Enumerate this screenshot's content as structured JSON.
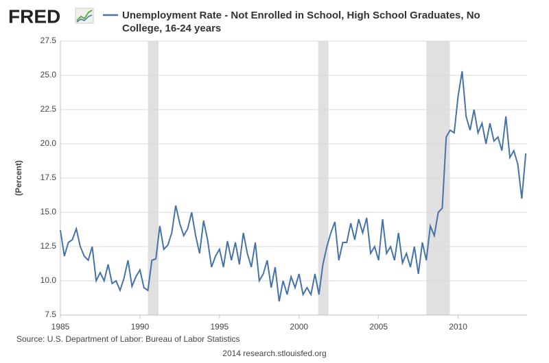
{
  "logo": "FRED",
  "chart_data": {
    "type": "line",
    "title": "Unemployment Rate - Not Enrolled in School, High School Graduates, No College, 16-24 years",
    "y_label": "(Percent)",
    "source": "Source: U.S. Department of Labor: Bureau of Labor Statistics",
    "footer": "2014 research.stlouisfed.org",
    "x": [
      1985,
      1985.25,
      1985.5,
      1985.75,
      1986,
      1986.25,
      1986.5,
      1986.75,
      1987,
      1987.25,
      1987.5,
      1987.75,
      1988,
      1988.25,
      1988.5,
      1988.75,
      1989,
      1989.25,
      1989.5,
      1989.75,
      1990,
      1990.25,
      1990.5,
      1990.75,
      1991,
      1991.25,
      1991.5,
      1991.75,
      1992,
      1992.25,
      1992.5,
      1992.75,
      1993,
      1993.25,
      1993.5,
      1993.75,
      1994,
      1994.25,
      1994.5,
      1994.75,
      1995,
      1995.25,
      1995.5,
      1995.75,
      1996,
      1996.25,
      1996.5,
      1996.75,
      1997,
      1997.25,
      1997.5,
      1997.75,
      1998,
      1998.25,
      1998.5,
      1998.75,
      1999,
      1999.25,
      1999.5,
      1999.75,
      2000,
      2000.25,
      2000.5,
      2000.75,
      2001,
      2001.25,
      2001.5,
      2001.75,
      2002,
      2002.25,
      2002.5,
      2002.75,
      2003,
      2003.25,
      2003.5,
      2003.75,
      2004,
      2004.25,
      2004.5,
      2004.75,
      2005,
      2005.25,
      2005.5,
      2005.75,
      2006,
      2006.25,
      2006.5,
      2006.75,
      2007,
      2007.25,
      2007.5,
      2007.75,
      2008,
      2008.25,
      2008.5,
      2008.75,
      2009,
      2009.25,
      2009.5,
      2009.75,
      2010,
      2010.25,
      2010.5,
      2010.75,
      2011,
      2011.25,
      2011.5,
      2011.75,
      2012,
      2012.25,
      2012.5,
      2012.75,
      2013,
      2013.25,
      2013.5,
      2013.75,
      2014,
      2014.25
    ],
    "series": [
      {
        "name": "Unemployment Rate - Not Enrolled in School, High School Graduates, No College, 16-24 years",
        "color": "#4572a7",
        "values": [
          13.7,
          11.8,
          12.8,
          13.0,
          13.8,
          12.5,
          11.8,
          11.5,
          12.5,
          10.0,
          10.6,
          10.0,
          11.2,
          9.8,
          10.0,
          9.3,
          10.2,
          11.5,
          9.6,
          10.3,
          10.8,
          9.5,
          9.3,
          11.5,
          11.6,
          14.0,
          12.3,
          12.6,
          13.5,
          15.5,
          14.2,
          13.3,
          13.8,
          15.0,
          13.3,
          12.0,
          14.4,
          13.0,
          11.0,
          11.8,
          12.3,
          11.0,
          12.9,
          11.5,
          12.8,
          11.2,
          13.5,
          12.0,
          11.0,
          12.8,
          10.0,
          10.5,
          11.5,
          9.5,
          11.0,
          8.5,
          10.0,
          9.0,
          10.3,
          9.5,
          10.5,
          9.0,
          9.5,
          9.0,
          10.5,
          9.0,
          11.2,
          12.5,
          13.5,
          14.3,
          11.5,
          12.8,
          12.8,
          14.2,
          13.0,
          14.5,
          13.5,
          14.6,
          12.0,
          12.5,
          11.5,
          14.5,
          12.0,
          12.5,
          11.5,
          13.5,
          11.3,
          12.0,
          11.0,
          12.5,
          10.5,
          12.8,
          11.5,
          14.0,
          13.3,
          15.0,
          15.3,
          20.5,
          21.0,
          20.8,
          23.5,
          25.3,
          22.0,
          21.0,
          22.5,
          20.8,
          21.5,
          20.0,
          21.5,
          20.2,
          20.5,
          19.5,
          22.0,
          19.0,
          19.5,
          18.5,
          16.0,
          19.3
        ]
      }
    ],
    "shaded_periods": [
      {
        "start": 1990.5,
        "end": 1991.17
      },
      {
        "start": 2001.2,
        "end": 2001.85
      },
      {
        "start": 2008.0,
        "end": 2009.48
      }
    ],
    "xlim": [
      1985,
      2014.33
    ],
    "xticks": [
      1985,
      1990,
      1995,
      2000,
      2005,
      2010
    ],
    "ylim": [
      7.5,
      27.5
    ],
    "yticks": [
      7.5,
      {
        "value": 10,
        "label": "10.0"
      },
      12.5,
      {
        "value": 15,
        "label": "15.0"
      },
      17.5,
      {
        "value": 20,
        "label": "20.0"
      },
      22.5,
      {
        "value": 25,
        "label": "25.0"
      },
      27.5
    ],
    "grid": true
  }
}
